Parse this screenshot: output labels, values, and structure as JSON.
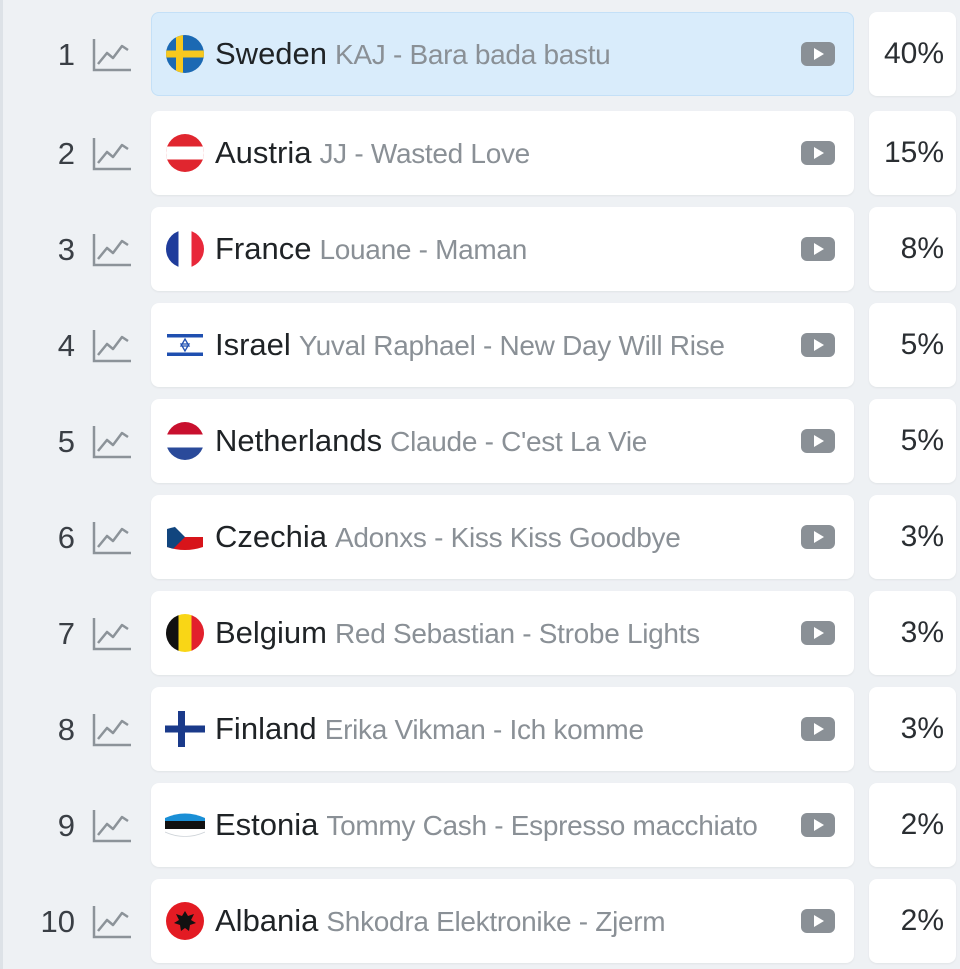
{
  "entries": [
    {
      "rank": "1",
      "country": "Sweden",
      "song": "KAJ - Bara bada bastu",
      "percent": "40%",
      "flag": "sweden-flag",
      "selected": true
    },
    {
      "rank": "2",
      "country": "Austria",
      "song": "JJ - Wasted Love",
      "percent": "15%",
      "flag": "austria-flag"
    },
    {
      "rank": "3",
      "country": "France",
      "song": "Louane - Maman",
      "percent": "8%",
      "flag": "france-flag"
    },
    {
      "rank": "4",
      "country": "Israel",
      "song": "Yuval Raphael - New Day Will Rise",
      "percent": "5%",
      "flag": "israel-flag"
    },
    {
      "rank": "5",
      "country": "Netherlands",
      "song": "Claude - C'est La Vie",
      "percent": "5%",
      "flag": "netherlands-flag"
    },
    {
      "rank": "6",
      "country": "Czechia",
      "song": "Adonxs - Kiss Kiss Goodbye",
      "percent": "3%",
      "flag": "czechia-flag"
    },
    {
      "rank": "7",
      "country": "Belgium",
      "song": "Red Sebastian - Strobe Lights",
      "percent": "3%",
      "flag": "belgium-flag"
    },
    {
      "rank": "8",
      "country": "Finland",
      "song": "Erika Vikman - Ich komme",
      "percent": "3%",
      "flag": "finland-flag"
    },
    {
      "rank": "9",
      "country": "Estonia",
      "song": "Tommy Cash - Espresso macchiato",
      "percent": "2%",
      "flag": "estonia-flag"
    },
    {
      "rank": "10",
      "country": "Albania",
      "song": "Shkodra Elektronike - Zjerm",
      "percent": "2%",
      "flag": "albania-flag"
    }
  ],
  "icons": {
    "trend": "trend-chart-icon",
    "play": "play-video-icon"
  },
  "colors": {
    "selected_row": "#d9ecfb",
    "row": "#ffffff",
    "background": "#eef1f4",
    "song_text": "#8a9096"
  }
}
